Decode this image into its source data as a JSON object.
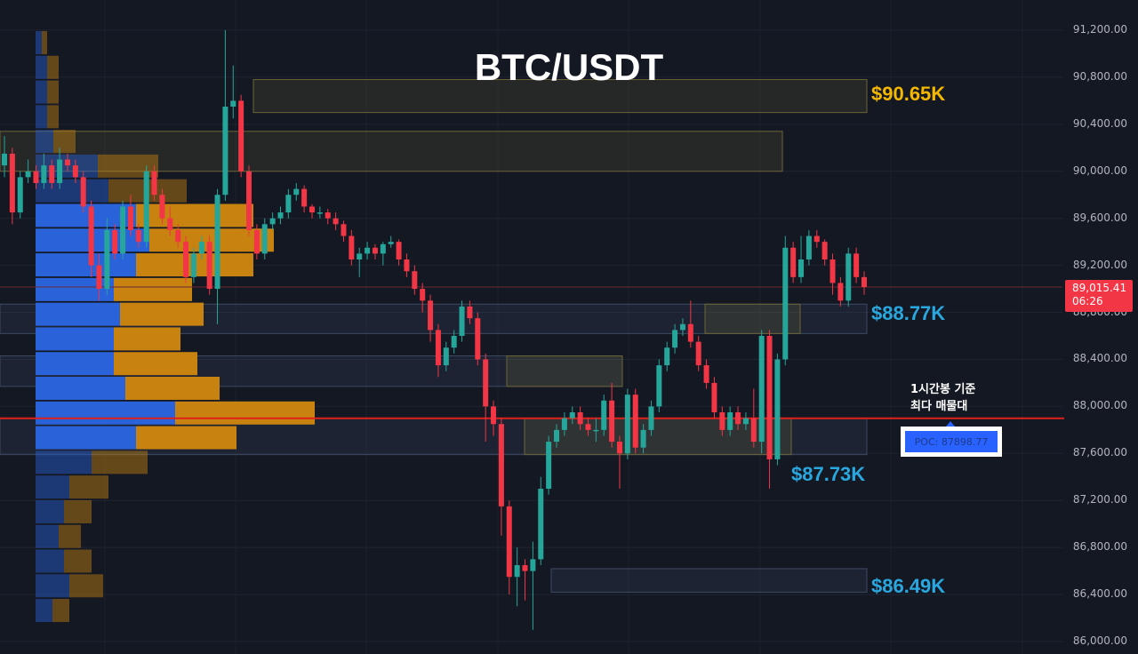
{
  "chart_data": {
    "type": "candlestick",
    "title": "BTC/USDT",
    "y_axis": {
      "range": [
        86000,
        91200
      ],
      "ticks": [
        "91,200.00",
        "90,800.00",
        "90,400.00",
        "90,000.00",
        "89,600.00",
        "89,200.00",
        "88,800.00",
        "88,400.00",
        "88,000.00",
        "87,600.00",
        "87,200.00",
        "86,800.00",
        "86,400.00",
        "86,000.00"
      ],
      "tick_values": [
        91200,
        90800,
        90400,
        90000,
        89600,
        89200,
        88800,
        88400,
        88000,
        87600,
        87200,
        86800,
        86400,
        86000
      ]
    },
    "grid": true,
    "colors": {
      "up": "#26a69a",
      "down": "#f23645",
      "background": "#141823",
      "buy_volume": "#2962d9",
      "sell_volume": "#c7820f",
      "poc_line": "#e0201b",
      "support_label": "#29a8e0",
      "resistance_label": "#f5b800"
    },
    "candles": [
      [
        90050,
        90300,
        89950,
        90150
      ],
      [
        90150,
        90200,
        89550,
        89650
      ],
      [
        89650,
        90000,
        89600,
        89950
      ],
      [
        89950,
        90100,
        89900,
        90000
      ],
      [
        90000,
        90050,
        89850,
        89900
      ],
      [
        89900,
        90150,
        89850,
        90050
      ],
      [
        90050,
        90100,
        89850,
        89900
      ],
      [
        89900,
        90200,
        89850,
        90100
      ],
      [
        90100,
        90150,
        90000,
        90050
      ],
      [
        90050,
        90100,
        89900,
        89950
      ],
      [
        89950,
        90000,
        89650,
        89700
      ],
      [
        89700,
        89750,
        89100,
        89200
      ],
      [
        89200,
        89300,
        88900,
        89000
      ],
      [
        89000,
        89600,
        88950,
        89500
      ],
      [
        89500,
        89550,
        89250,
        89300
      ],
      [
        89300,
        89750,
        89250,
        89700
      ],
      [
        89700,
        89800,
        89450,
        89500
      ],
      [
        89500,
        89550,
        89350,
        89400
      ],
      [
        89400,
        90050,
        89350,
        90000
      ],
      [
        90000,
        90050,
        89750,
        89800
      ],
      [
        89800,
        89850,
        89550,
        89600
      ],
      [
        89600,
        89700,
        89450,
        89500
      ],
      [
        89500,
        89550,
        89350,
        89400
      ],
      [
        89400,
        89450,
        89050,
        89100
      ],
      [
        89100,
        89350,
        89050,
        89300
      ],
      [
        89300,
        89450,
        89250,
        89400
      ],
      [
        89400,
        89450,
        88950,
        89000
      ],
      [
        89000,
        89850,
        88700,
        89800
      ],
      [
        89800,
        91200,
        89750,
        90550
      ],
      [
        90550,
        90900,
        90450,
        90600
      ],
      [
        90600,
        90650,
        89950,
        90000
      ],
      [
        90000,
        90050,
        89450,
        89500
      ],
      [
        89500,
        89550,
        89250,
        89300
      ],
      [
        89300,
        89600,
        89250,
        89550
      ],
      [
        89550,
        89650,
        89500,
        89600
      ],
      [
        89600,
        89700,
        89550,
        89650
      ],
      [
        89650,
        89850,
        89600,
        89800
      ],
      [
        89800,
        89900,
        89750,
        89850
      ],
      [
        89850,
        89880,
        89650,
        89700
      ],
      [
        89700,
        89720,
        89600,
        89650
      ],
      [
        89650,
        89700,
        89600,
        89650
      ],
      [
        89650,
        89680,
        89550,
        89600
      ],
      [
        89600,
        89650,
        89500,
        89550
      ],
      [
        89550,
        89580,
        89400,
        89450
      ],
      [
        89450,
        89500,
        89200,
        89250
      ],
      [
        89250,
        89350,
        89100,
        89300
      ],
      [
        89300,
        89400,
        89250,
        89350
      ],
      [
        89350,
        89380,
        89250,
        89300
      ],
      [
        89300,
        89400,
        89200,
        89380
      ],
      [
        89380,
        89450,
        89350,
        89400
      ],
      [
        89400,
        89420,
        89200,
        89250
      ],
      [
        89250,
        89300,
        89100,
        89150
      ],
      [
        89150,
        89200,
        88950,
        89000
      ],
      [
        89000,
        89050,
        88800,
        88900
      ],
      [
        88900,
        88950,
        88550,
        88650
      ],
      [
        88650,
        88700,
        88250,
        88350
      ],
      [
        88350,
        88550,
        88300,
        88500
      ],
      [
        88500,
        88650,
        88450,
        88600
      ],
      [
        88600,
        88900,
        88550,
        88850
      ],
      [
        88850,
        88900,
        88700,
        88750
      ],
      [
        88750,
        88800,
        88350,
        88400
      ],
      [
        88400,
        88450,
        87700,
        88000
      ],
      [
        88000,
        88050,
        87750,
        87850
      ],
      [
        87850,
        87900,
        86900,
        87150
      ],
      [
        87150,
        87200,
        86400,
        86550
      ],
      [
        86550,
        86800,
        86300,
        86650
      ],
      [
        86650,
        86700,
        86350,
        86600
      ],
      [
        86600,
        86850,
        86100,
        86700
      ],
      [
        86700,
        87400,
        86650,
        87300
      ],
      [
        87300,
        87750,
        87250,
        87700
      ],
      [
        87700,
        87850,
        87650,
        87800
      ],
      [
        87800,
        87950,
        87750,
        87900
      ],
      [
        87900,
        88000,
        87850,
        87950
      ],
      [
        87950,
        88000,
        87800,
        87850
      ],
      [
        87850,
        87900,
        87750,
        87800
      ],
      [
        87800,
        87900,
        87700,
        87800
      ],
      [
        87800,
        88100,
        87750,
        88050
      ],
      [
        88050,
        88200,
        87650,
        87700
      ],
      [
        87700,
        87750,
        87300,
        87600
      ],
      [
        87600,
        88150,
        87550,
        88100
      ],
      [
        88100,
        88150,
        87600,
        87650
      ],
      [
        87650,
        87850,
        87600,
        87800
      ],
      [
        87800,
        88050,
        87750,
        88000
      ],
      [
        88000,
        88400,
        87950,
        88350
      ],
      [
        88350,
        88550,
        88300,
        88500
      ],
      [
        88500,
        88700,
        88450,
        88650
      ],
      [
        88650,
        88750,
        88600,
        88700
      ],
      [
        88700,
        88900,
        88500,
        88550
      ],
      [
        88550,
        88600,
        88300,
        88350
      ],
      [
        88350,
        88400,
        88150,
        88200
      ],
      [
        88200,
        88250,
        87900,
        87950
      ],
      [
        87950,
        88000,
        87750,
        87800
      ],
      [
        87800,
        88000,
        87750,
        87950
      ],
      [
        87950,
        88000,
        87800,
        87850
      ],
      [
        87850,
        87950,
        87800,
        87900
      ],
      [
        87900,
        88150,
        87650,
        87700
      ],
      [
        87700,
        88650,
        87600,
        88600
      ],
      [
        88600,
        88650,
        87300,
        87550
      ],
      [
        87550,
        88450,
        87500,
        88400
      ],
      [
        88400,
        89450,
        88350,
        89350
      ],
      [
        89350,
        89400,
        89050,
        89100
      ],
      [
        89100,
        89450,
        89050,
        89250
      ],
      [
        89250,
        89500,
        89200,
        89450
      ],
      [
        89450,
        89500,
        89350,
        89400
      ],
      [
        89400,
        89420,
        89200,
        89250
      ],
      [
        89250,
        89300,
        88950,
        89050
      ],
      [
        89050,
        89100,
        88850,
        88900
      ],
      [
        88900,
        89350,
        88850,
        89300
      ],
      [
        89300,
        89350,
        89050,
        89100
      ],
      [
        89100,
        89150,
        88950,
        89015.41
      ]
    ],
    "volume_profile": {
      "row_top_prices": [
        91200,
        90990,
        90780,
        90570,
        90360,
        90150,
        89940,
        89730,
        89520,
        89310,
        89100,
        88890,
        88680,
        88470,
        88260,
        88050,
        87840,
        87630,
        87420,
        87210,
        87000,
        86790,
        86580,
        86370
      ],
      "buy": [
        7,
        13,
        13,
        13,
        20,
        70,
        82,
        113,
        128,
        113,
        88,
        95,
        88,
        88,
        101,
        157,
        113,
        63,
        38,
        32,
        26,
        32,
        38,
        19
      ],
      "sell": [
        6,
        13,
        13,
        13,
        25,
        68,
        88,
        132,
        140,
        132,
        88,
        94,
        75,
        94,
        106,
        157,
        113,
        63,
        44,
        31,
        25,
        31,
        38,
        19
      ],
      "value_area_rows": [
        7,
        16
      ]
    },
    "zones": [
      {
        "kind": "resistance",
        "top": 90780,
        "bottom": 90500,
        "label": "$90.65K"
      },
      {
        "kind": "resistance",
        "top": 90340,
        "bottom": 90000
      },
      {
        "kind": "support",
        "top": 88870,
        "bottom": 88620,
        "label": "$88.77K"
      },
      {
        "kind": "support",
        "top": 88430,
        "bottom": 88170
      },
      {
        "kind": "support",
        "top": 87900,
        "bottom": 87590,
        "label": "$87.73K"
      },
      {
        "kind": "support",
        "top": 86620,
        "bottom": 86420,
        "label": "$86.49K"
      }
    ],
    "poc": {
      "value": 87898.77,
      "label": "POC: 87898.77",
      "note_line1": "1시간봉 기준",
      "note_line2": "최다 매물대"
    },
    "last_price": {
      "value": 89015.41,
      "label": "89,015.41",
      "countdown": "06:26"
    }
  }
}
